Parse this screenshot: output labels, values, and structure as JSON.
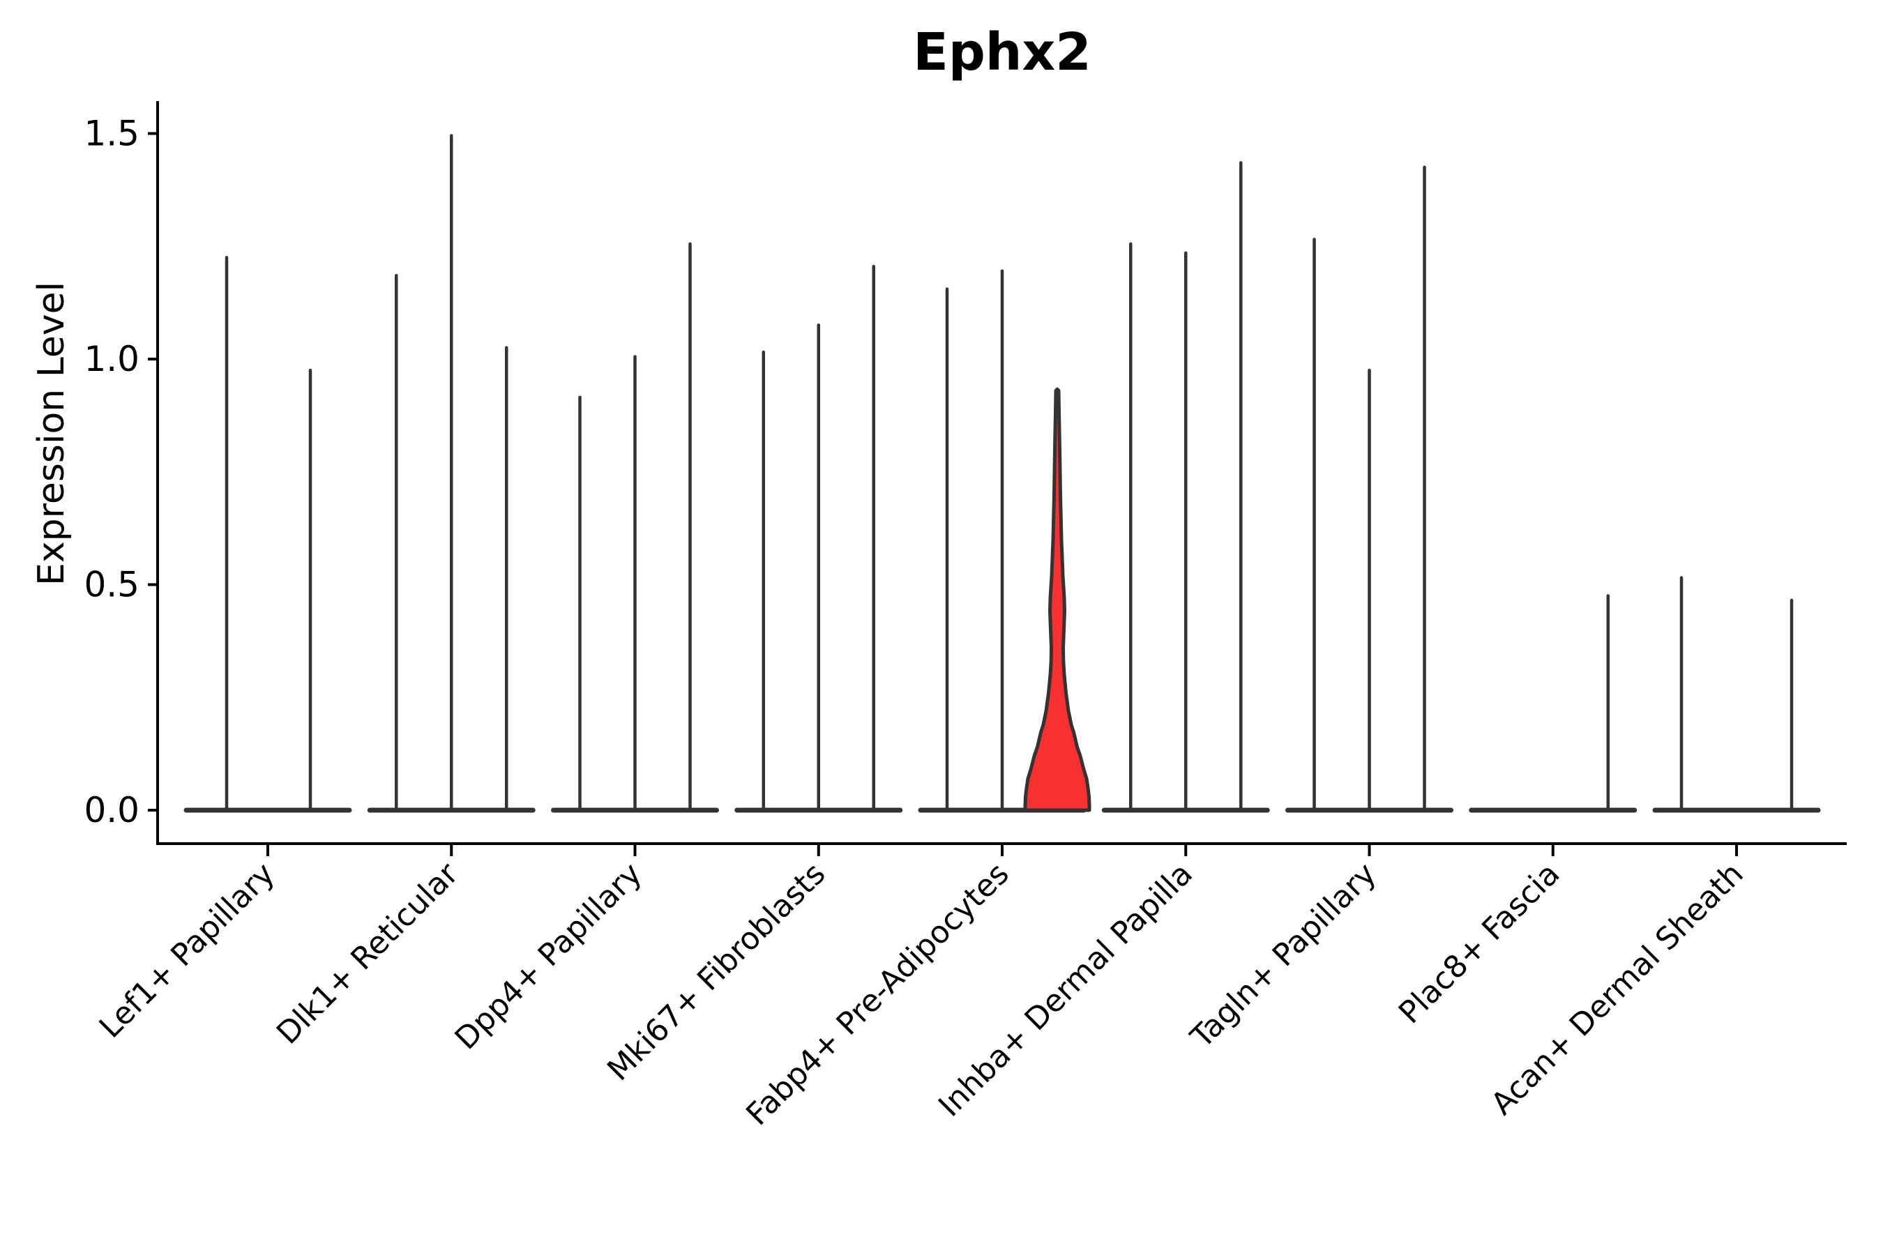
{
  "title": "Ephx2",
  "ylabel": "Expression Level",
  "chart_data": {
    "type": "violin",
    "title": "Ephx2",
    "xlabel": "",
    "ylabel": "Expression Level",
    "ylim": [
      0,
      1.55
    ],
    "yticks": [
      "0.0",
      "0.5",
      "1.0",
      "1.5"
    ],
    "ytick_values": [
      0.0,
      0.5,
      1.0,
      1.5
    ],
    "x_tick_rotation": 45,
    "grid": "off",
    "legend": "none",
    "categories": [
      "Lef1+ Papillary",
      "Dlk1+ Reticular",
      "Dpp4+ Papillary",
      "Mki67+ Fibroblasts",
      "Fabp4+ Pre-Adipocytes",
      "Inhba+ Dermal Papilla",
      "Tagln+ Papillary",
      "Plac8+ Fascia",
      "Acan+ Dermal Sheath"
    ],
    "groups": [
      {
        "label": "Lef1+ Papillary",
        "violins": [
          {
            "offset": -59,
            "max": 1.23
          },
          {
            "offset": 61,
            "max": 0.98
          }
        ]
      },
      {
        "label": "Dlk1+ Reticular",
        "violins": [
          {
            "offset": -79,
            "max": 1.19
          },
          {
            "offset": 0,
            "max": 1.5
          },
          {
            "offset": 79,
            "max": 1.03
          }
        ]
      },
      {
        "label": "Dpp4+ Papillary",
        "violins": [
          {
            "offset": -79,
            "max": 0.92
          },
          {
            "offset": 0,
            "max": 1.01
          },
          {
            "offset": 79,
            "max": 1.26
          }
        ]
      },
      {
        "label": "Mki67+ Fibroblasts",
        "violins": [
          {
            "offset": -79,
            "max": 1.02
          },
          {
            "offset": 0,
            "max": 1.08
          },
          {
            "offset": 79,
            "max": 1.21
          }
        ]
      },
      {
        "label": "Fabp4+ Pre-Adipocytes",
        "violins": [
          {
            "offset": -79,
            "max": 1.16
          },
          {
            "offset": 0,
            "max": 1.2
          },
          {
            "offset": 79,
            "max": 0.93,
            "highlight": true
          }
        ]
      },
      {
        "label": "Inhba+ Dermal Papilla",
        "violins": [
          {
            "offset": -79,
            "max": 1.26
          },
          {
            "offset": 0,
            "max": 1.24
          },
          {
            "offset": 79,
            "max": 1.44
          }
        ]
      },
      {
        "label": "Tagln+ Papillary",
        "violins": [
          {
            "offset": -79,
            "max": 1.27
          },
          {
            "offset": 0,
            "max": 0.98
          },
          {
            "offset": 79,
            "max": 1.43
          }
        ]
      },
      {
        "label": "Plac8+ Fascia",
        "violins": [
          {
            "offset": -79,
            "max": 0.0
          },
          {
            "offset": 0,
            "max": 0.0
          },
          {
            "offset": 79,
            "max": 0.48
          }
        ]
      },
      {
        "label": "Acan+ Dermal Sheath",
        "violins": [
          {
            "offset": -79,
            "max": 0.52
          },
          {
            "offset": 0,
            "max": 0.0
          },
          {
            "offset": 79,
            "max": 0.47
          }
        ]
      }
    ],
    "highlight_violin": {
      "group": "Fabp4+ Pre-Adipocytes",
      "max": 0.93,
      "profile": [
        [
          0.93,
          2
        ],
        [
          0.88,
          2.5
        ],
        [
          0.8,
          3.5
        ],
        [
          0.7,
          4.5
        ],
        [
          0.6,
          6
        ],
        [
          0.52,
          8
        ],
        [
          0.47,
          10
        ],
        [
          0.44,
          10.5
        ],
        [
          0.4,
          9.5
        ],
        [
          0.36,
          8.5
        ],
        [
          0.33,
          8.8
        ],
        [
          0.3,
          10
        ],
        [
          0.26,
          12.5
        ],
        [
          0.22,
          16
        ],
        [
          0.19,
          20
        ],
        [
          0.17,
          24
        ],
        [
          0.14,
          28.5
        ],
        [
          0.12,
          33
        ],
        [
          0.09,
          38
        ],
        [
          0.07,
          42
        ],
        [
          0.05,
          44
        ],
        [
          0.03,
          45.5
        ],
        [
          0.01,
          46
        ],
        [
          0.0,
          46
        ]
      ]
    },
    "colors": {
      "highlight_fill": "#f93030",
      "violin_stroke": "#333333",
      "axis": "#000000",
      "background": "#ffffff"
    }
  }
}
